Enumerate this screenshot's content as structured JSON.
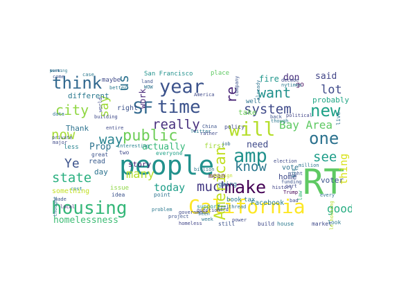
{
  "words": [
    {
      "text": "people",
      "color": "#21918c"
    },
    {
      "text": "RT",
      "color": "#5ec962"
    },
    {
      "text": "housing",
      "color": "#35b779"
    },
    {
      "text": "California",
      "color": "#fde725"
    },
    {
      "text": "year",
      "color": "#3b528b"
    },
    {
      "text": "think",
      "color": "#31688e"
    },
    {
      "text": "time",
      "color": "#3b528b"
    },
    {
      "text": "will",
      "color": "#b5de2b"
    },
    {
      "text": "amp",
      "color": "#21918c"
    },
    {
      "text": "new",
      "color": "#1fa187"
    },
    {
      "text": "one",
      "color": "#2c728e"
    },
    {
      "text": "SF",
      "color": "#31688e"
    },
    {
      "text": "city",
      "color": "#90d743"
    },
    {
      "text": "now",
      "color": "#a5db36"
    },
    {
      "text": "state",
      "color": "#29af7f"
    },
    {
      "text": "make",
      "color": "#440154"
    },
    {
      "text": "public",
      "color": "#6ece58"
    },
    {
      "text": "much",
      "color": "#443983"
    },
    {
      "text": "want",
      "color": "#21918c"
    },
    {
      "text": "system",
      "color": "#3e4989"
    },
    {
      "text": "know",
      "color": "#2a788e"
    },
    {
      "text": "really",
      "color": "#472f7d"
    },
    {
      "text": "lot",
      "color": "#3e4989"
    },
    {
      "text": "Bay Area",
      "color": "#5ec962"
    },
    {
      "text": "American",
      "color": "#c2df23"
    },
    {
      "text": "good",
      "color": "#26ad81"
    },
    {
      "text": "us",
      "color": "#2c728e"
    },
    {
      "text": "re",
      "color": "#482475"
    },
    {
      "text": "way",
      "color": "#26828e"
    },
    {
      "text": "see",
      "color": "#1f9e89"
    },
    {
      "text": "Ye",
      "color": "#3b528b"
    },
    {
      "text": "say",
      "color": "#9fda3a"
    },
    {
      "text": "many",
      "color": "#b5de2b"
    },
    {
      "text": "homelessness",
      "color": "#3dbc74"
    },
    {
      "text": "today",
      "color": "#1f9e89"
    },
    {
      "text": "Prop",
      "color": "#2c728e"
    },
    {
      "text": "need",
      "color": "#3e4989"
    },
    {
      "text": "thing",
      "color": "#d8e219"
    },
    {
      "text": "actually",
      "color": "#35b779"
    },
    {
      "text": "don",
      "color": "#472d7b"
    },
    {
      "text": "said",
      "color": "#414487"
    },
    {
      "text": "fire",
      "color": "#1f968b"
    },
    {
      "text": "work",
      "color": "#482878"
    },
    {
      "text": "different",
      "color": "#2a788e"
    },
    {
      "text": "take",
      "color": "#6ece58"
    },
    {
      "text": "Thank",
      "color": "#2c728e"
    },
    {
      "text": "story",
      "color": "#481f70"
    },
    {
      "text": "read",
      "color": "#375a8c"
    },
    {
      "text": "day",
      "color": "#2c728e"
    },
    {
      "text": "home",
      "color": "#3e4989"
    },
    {
      "text": "vote",
      "color": "#2c728e"
    },
    {
      "text": "Facebook",
      "color": "#287c8e"
    },
    {
      "text": "probably",
      "color": "#21a685"
    },
    {
      "text": "voter",
      "color": "#3b528b"
    },
    {
      "text": "go",
      "color": "#470d60"
    },
    {
      "text": "right",
      "color": "#3b528b"
    },
    {
      "text": "well",
      "color": "#2c728e"
    },
    {
      "text": "mean",
      "color": "#440154"
    },
    {
      "text": "book",
      "color": "#29798e"
    },
    {
      "text": "tax",
      "color": "#2a788e"
    },
    {
      "text": "first",
      "color": "#a2da37"
    },
    {
      "text": "going",
      "color": "#2c728e"
    },
    {
      "text": "issue",
      "color": "#8ed645"
    },
    {
      "text": "San Francisco",
      "color": "#21918c"
    },
    {
      "text": "place",
      "color": "#5ec962"
    },
    {
      "text": "maybe",
      "color": "#3e4989"
    },
    {
      "text": "less",
      "color": "#26828e"
    },
    {
      "text": "great",
      "color": "#3b528b"
    },
    {
      "text": "two",
      "color": "#3e4989"
    },
    {
      "text": "everyone",
      "color": "#1fa187"
    },
    {
      "text": "point",
      "color": "#2c728e"
    },
    {
      "text": "problem",
      "color": "#2a788e"
    },
    {
      "text": "government",
      "color": "#3e4989"
    },
    {
      "text": "homeless",
      "color": "#414487"
    },
    {
      "text": "still",
      "color": "#3b528b"
    },
    {
      "text": "build",
      "color": "#3e4989"
    },
    {
      "text": "house",
      "color": "#2a788e"
    },
    {
      "text": "market",
      "color": "#3e4989"
    },
    {
      "text": "look",
      "color": "#2a788e"
    },
    {
      "text": "seen",
      "color": "#2c728e"
    },
    {
      "text": "support",
      "color": "#21918c"
    },
    {
      "text": "local",
      "color": "#482878"
    },
    {
      "text": "idea",
      "color": "#3b528b"
    },
    {
      "text": "cost",
      "color": "#26828e"
    },
    {
      "text": "made",
      "color": "#3b528b"
    },
    {
      "text": "something",
      "color": "#c2df23"
    },
    {
      "text": "policy",
      "color": "#3e4989"
    },
    {
      "text": "job",
      "color": "#31688e"
    },
    {
      "text": "Trump",
      "color": "#440154"
    },
    {
      "text": "bad",
      "color": "#3e4989"
    },
    {
      "text": "law",
      "color": "#35b779"
    },
    {
      "text": "every",
      "color": "#2c728e"
    },
    {
      "text": "part",
      "color": "#3e4989"
    },
    {
      "text": "land",
      "color": "#3b528b"
    },
    {
      "text": "WOW",
      "color": "#2c728e"
    },
    {
      "text": "America",
      "color": "#3e4989"
    },
    {
      "text": "already",
      "color": "#2c728e"
    },
    {
      "text": "company",
      "color": "#3b528b"
    },
    {
      "text": "better",
      "color": "#2a788e"
    },
    {
      "text": "world",
      "color": "#3e4989"
    },
    {
      "text": "data",
      "color": "#2c728e"
    },
    {
      "text": "come",
      "color": "#3b528b"
    },
    {
      "text": "case",
      "color": "#2a788e"
    },
    {
      "text": "entire",
      "color": "#3e4989"
    },
    {
      "text": "interesting",
      "color": "#26828e"
    },
    {
      "text": "back",
      "color": "#3b528b"
    },
    {
      "text": "political",
      "color": "#414487"
    },
    {
      "text": "big",
      "color": "#2a788e"
    },
    {
      "text": "question",
      "color": "#3e4989"
    },
    {
      "text": "campaign",
      "color": "#c2df23"
    },
    {
      "text": "million",
      "color": "#2c728e"
    },
    {
      "text": "billion",
      "color": "#2a788e"
    },
    {
      "text": "funding",
      "color": "#3b528b"
    },
    {
      "text": "election",
      "color": "#3e4989"
    },
    {
      "text": "history",
      "color": "#414487"
    },
    {
      "text": "feel",
      "color": "#2c728e"
    },
    {
      "text": "hard",
      "color": "#3b528b"
    },
    {
      "text": "week",
      "color": "#2a788e"
    },
    {
      "text": "power",
      "color": "#3e4989"
    },
    {
      "text": "thread",
      "color": "#2c728e"
    },
    {
      "text": "project",
      "color": "#3b528b"
    },
    {
      "text": "Twitter",
      "color": "#2a788e"
    },
    {
      "text": "rather",
      "color": "#3e4989"
    },
    {
      "text": "China",
      "color": "#3b528b"
    },
    {
      "text": "live",
      "color": "#2c728e"
    },
    {
      "text": "decade",
      "color": "#3e4989"
    },
    {
      "text": "nytimes",
      "color": "#2a788e"
    },
    {
      "text": "affordable housing",
      "color": "#b5de2b"
    },
    {
      "text": "private",
      "color": "#3b528b"
    },
    {
      "text": "major",
      "color": "#3e4989"
    },
    {
      "text": "thought",
      "color": "#2c728e"
    },
    {
      "text": "might",
      "color": "#3b528b"
    },
    {
      "text": "though",
      "color": "#2a788e"
    },
    {
      "text": "building",
      "color": "#3e4989"
    },
    {
      "text": "part",
      "color": "#2c728e"
    },
    {
      "text": "level",
      "color": "#3b528b"
    },
    {
      "text": "working",
      "color": "#2a788e"
    }
  ]
}
